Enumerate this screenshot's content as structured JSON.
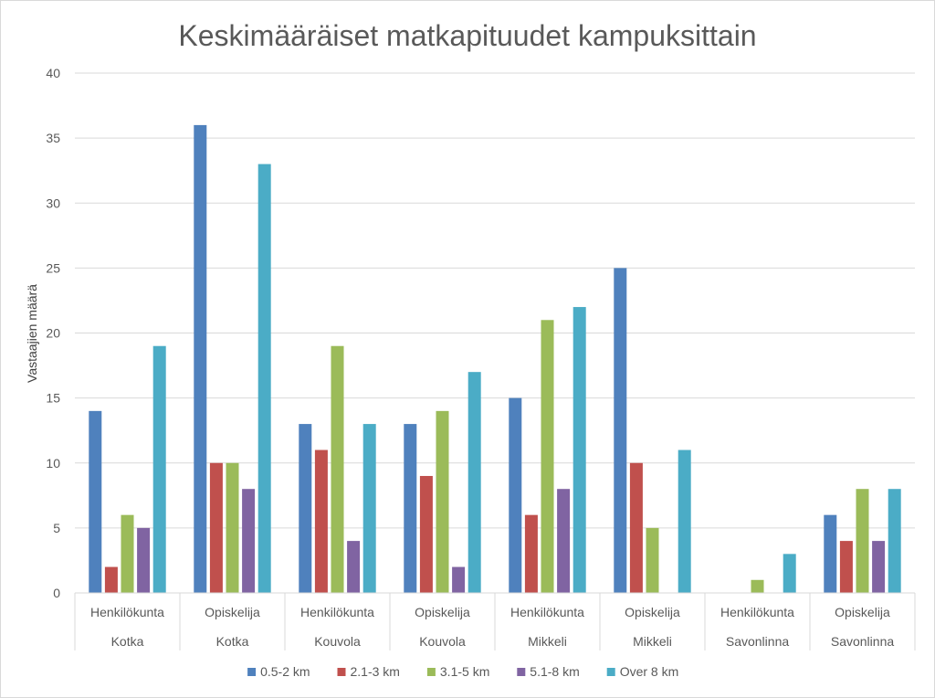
{
  "chart_data": {
    "type": "bar",
    "title": "Keskimääräiset matkapituudet kampuksittain",
    "ylabel": "Vastaajien määrä",
    "xlabel": "",
    "ylim": [
      0,
      40
    ],
    "ytick_step": 5,
    "grid": true,
    "legend_position": "bottom",
    "categories": [
      {
        "group": "Henkilökunta",
        "campus": "Kotka"
      },
      {
        "group": "Opiskelija",
        "campus": "Kotka"
      },
      {
        "group": "Henkilökunta",
        "campus": "Kouvola"
      },
      {
        "group": "Opiskelija",
        "campus": "Kouvola"
      },
      {
        "group": "Henkilökunta",
        "campus": "Mikkeli"
      },
      {
        "group": "Opiskelija",
        "campus": "Mikkeli"
      },
      {
        "group": "Henkilökunta",
        "campus": "Savonlinna"
      },
      {
        "group": "Opiskelija",
        "campus": "Savonlinna"
      }
    ],
    "series": [
      {
        "name": "0.5-2 km",
        "color": "#4F81BD",
        "values": [
          14,
          36,
          13,
          13,
          15,
          25,
          0,
          6
        ]
      },
      {
        "name": "2.1-3 km",
        "color": "#C0504D",
        "values": [
          2,
          10,
          11,
          9,
          6,
          10,
          0,
          4
        ]
      },
      {
        "name": "3.1-5 km",
        "color": "#9BBB59",
        "values": [
          6,
          10,
          19,
          14,
          21,
          5,
          1,
          8
        ]
      },
      {
        "name": "5.1-8 km",
        "color": "#8064A2",
        "values": [
          5,
          8,
          4,
          2,
          8,
          0,
          0,
          4
        ]
      },
      {
        "name": "Over 8 km",
        "color": "#4BACC6",
        "values": [
          19,
          33,
          13,
          17,
          22,
          11,
          3,
          8
        ]
      }
    ]
  }
}
